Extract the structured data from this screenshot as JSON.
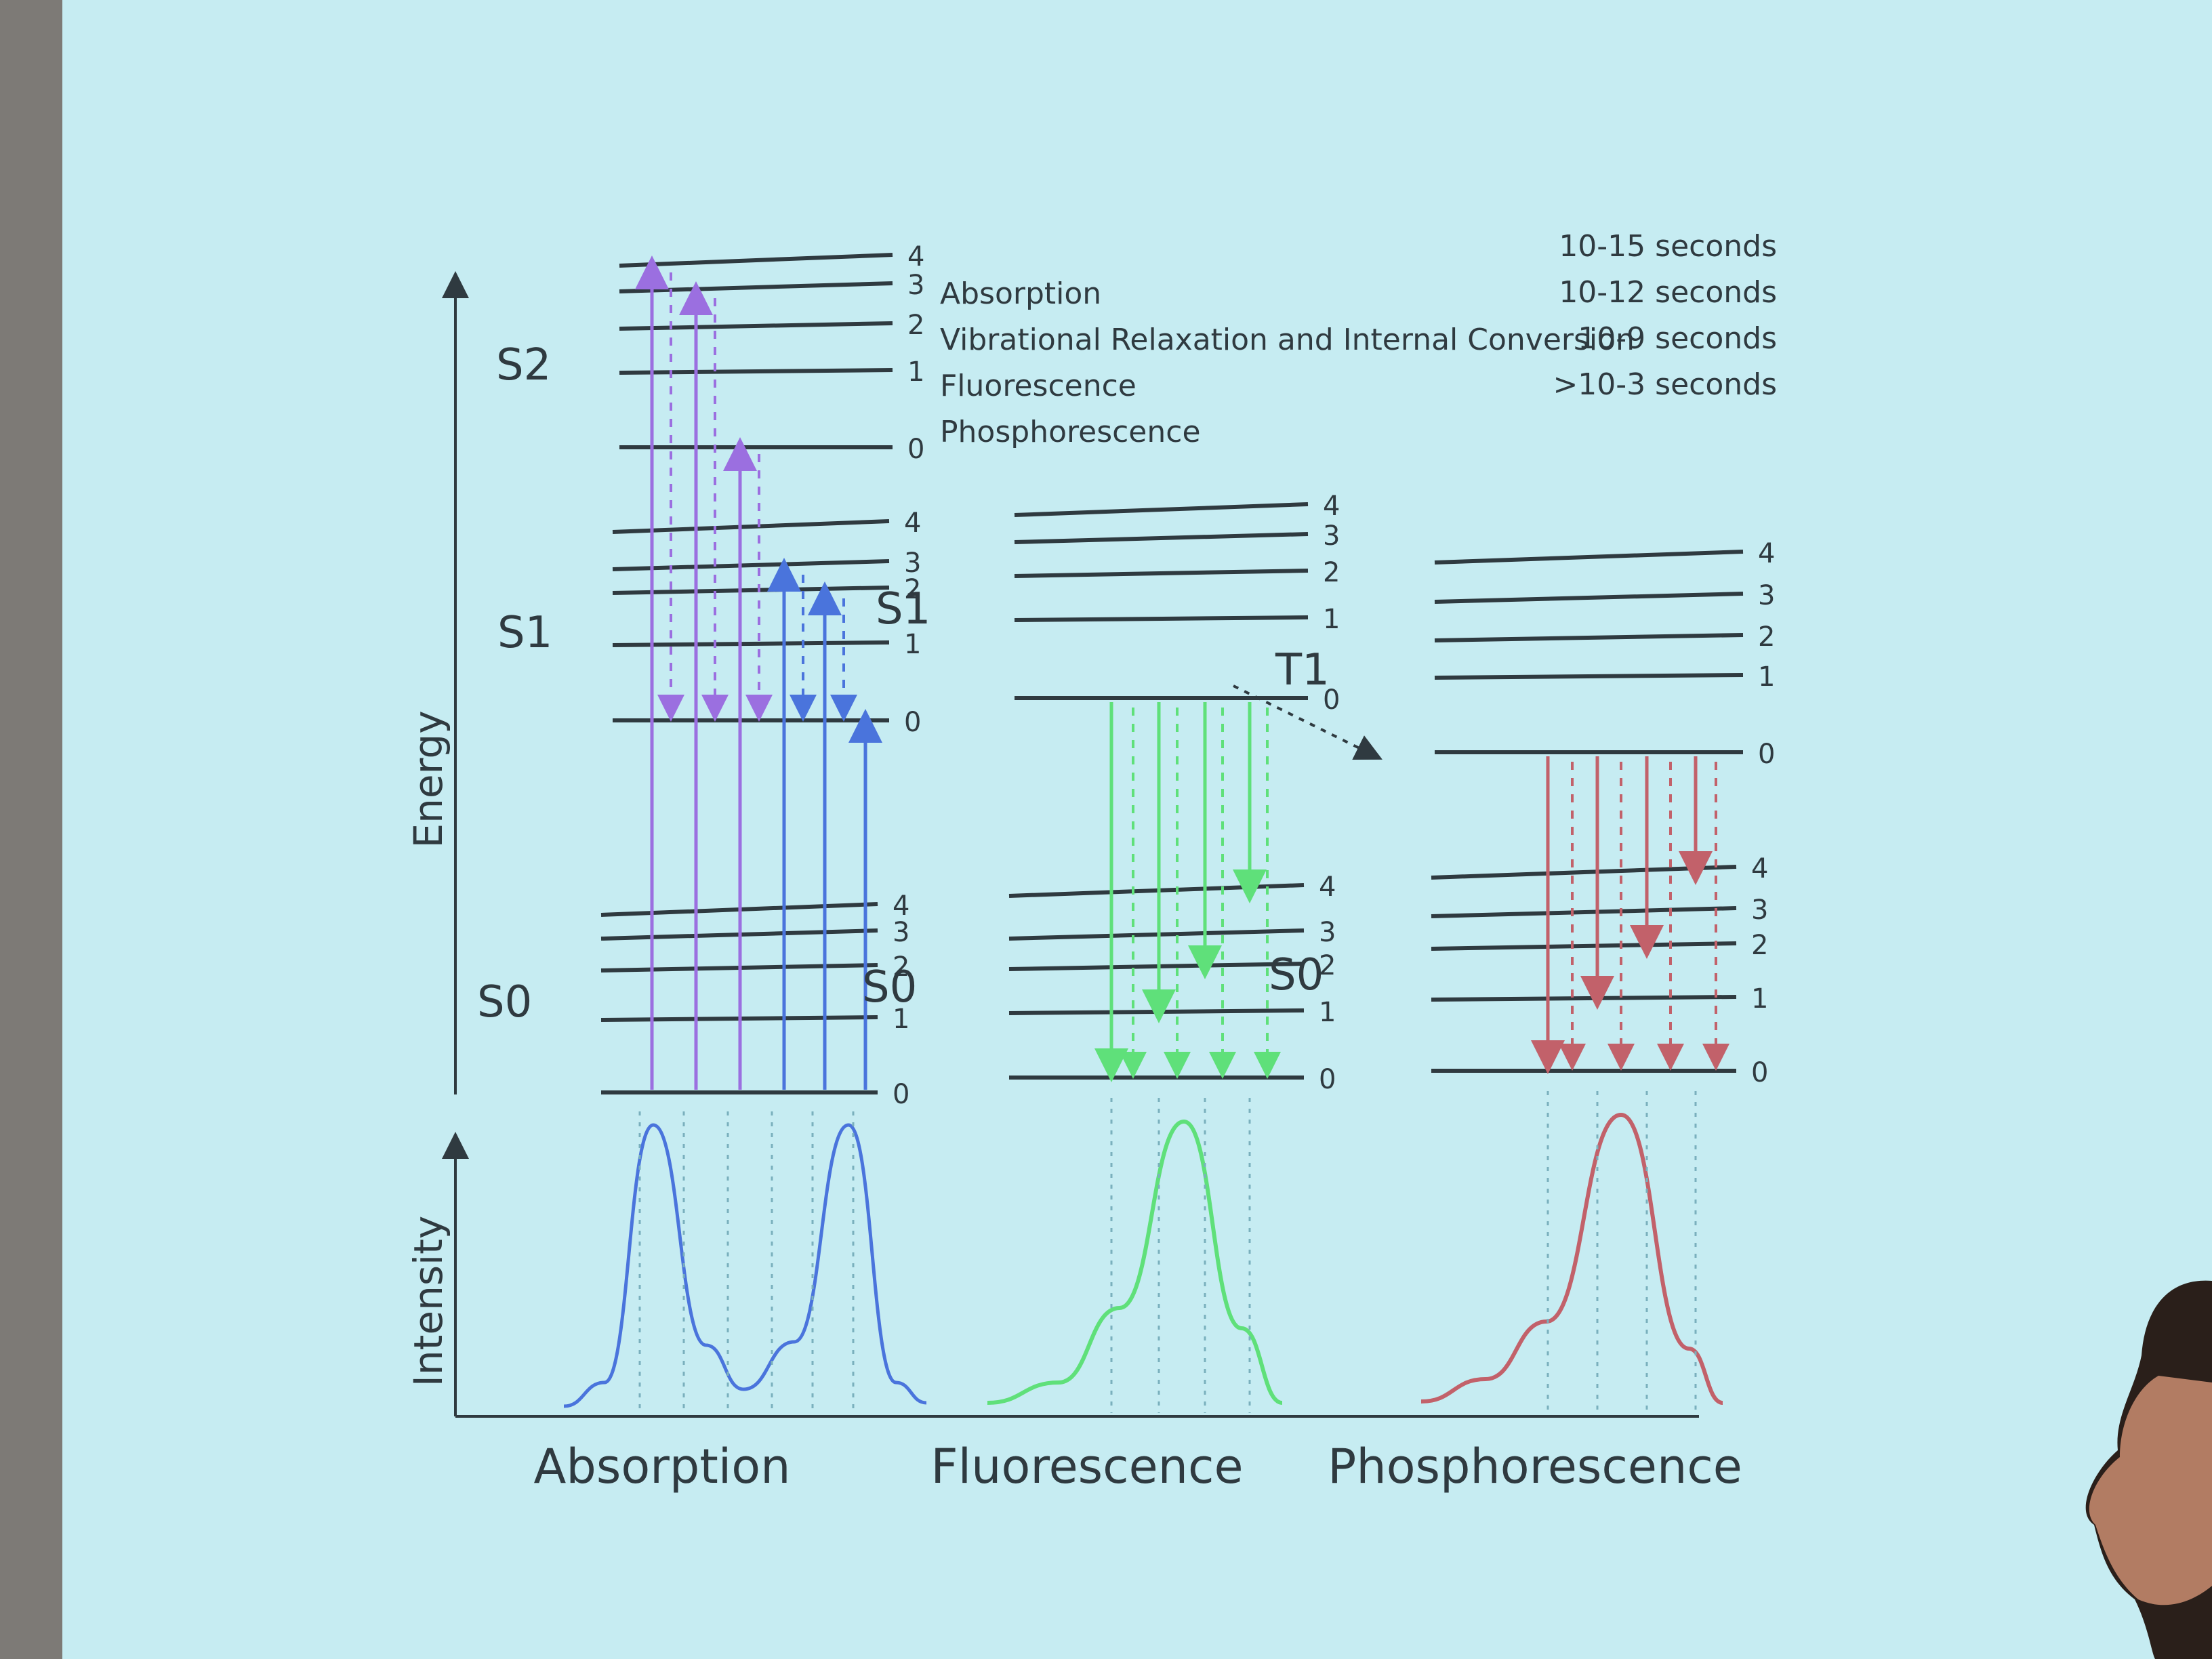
{
  "energy_axis_label": "Energy",
  "intensity_axis_label": "Intensity",
  "vib_numbers": [
    "0",
    "1",
    "2",
    "3",
    "4"
  ],
  "state_labels": {
    "s2": "S2",
    "s1": "S1",
    "s0": "S0",
    "t1": "T1"
  },
  "legend": {
    "processes": [
      "Absorption",
      "Vibrational Relaxation and Internal Conversion",
      "Fluorescence",
      "Phosphorescence"
    ],
    "times": [
      "10-15 seconds",
      "10-12 seconds",
      "10-9 seconds",
      ">10-3 seconds"
    ]
  },
  "panels": [
    "Absorption",
    "Fluorescence",
    "Phosphorescence"
  ],
  "colors": {
    "absorption_s2": "#9b6fe0",
    "absorption_s1": "#4a74dc",
    "fluorescence": "#5fe07a",
    "phosphorescence": "#c2616a",
    "ink": "#2f3a40",
    "screen": "#c6ecf2"
  }
}
